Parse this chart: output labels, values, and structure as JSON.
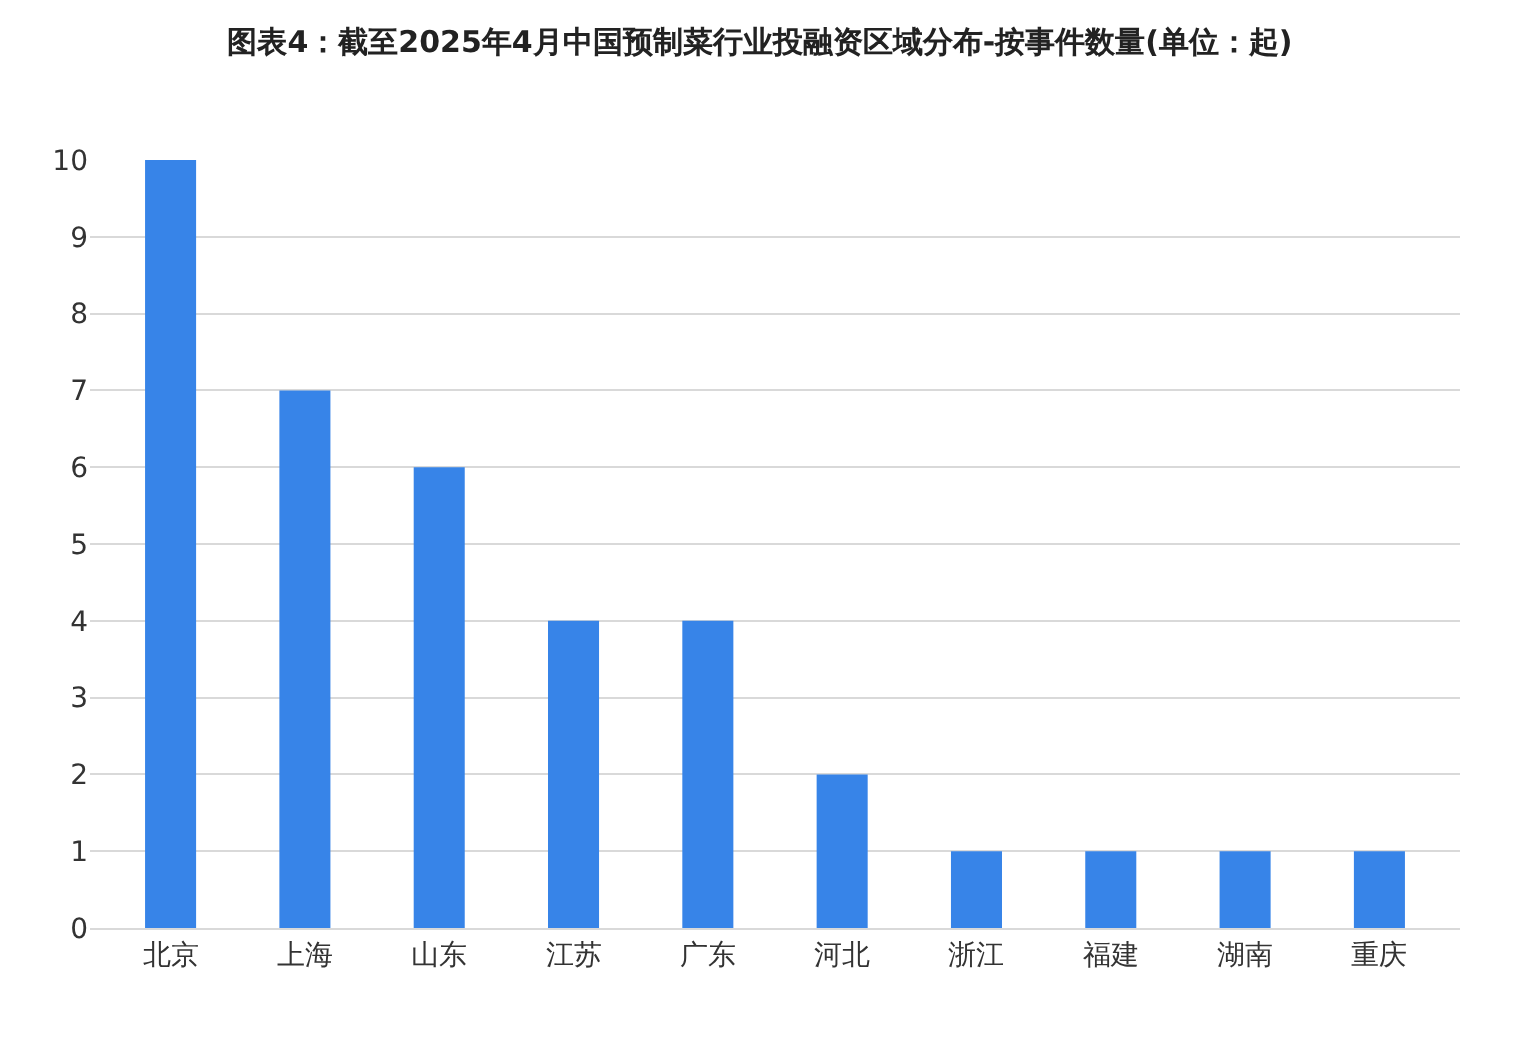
{
  "chart_data": {
    "type": "bar",
    "title": "图表4：截至2025年4月中国预制菜行业投融资区域分布-按事件数量(单位：起)",
    "categories": [
      "北京",
      "上海",
      "山东",
      "江苏",
      "广东",
      "河北",
      "浙江",
      "福建",
      "湖南",
      "重庆"
    ],
    "values": [
      10,
      7,
      6,
      4,
      4,
      2,
      1,
      1,
      1,
      1
    ],
    "color": "#3784e8",
    "ylim": [
      0,
      10
    ],
    "yticks": [
      0,
      1,
      2,
      3,
      4,
      5,
      6,
      7,
      8,
      9,
      10
    ],
    "grid": "y"
  }
}
